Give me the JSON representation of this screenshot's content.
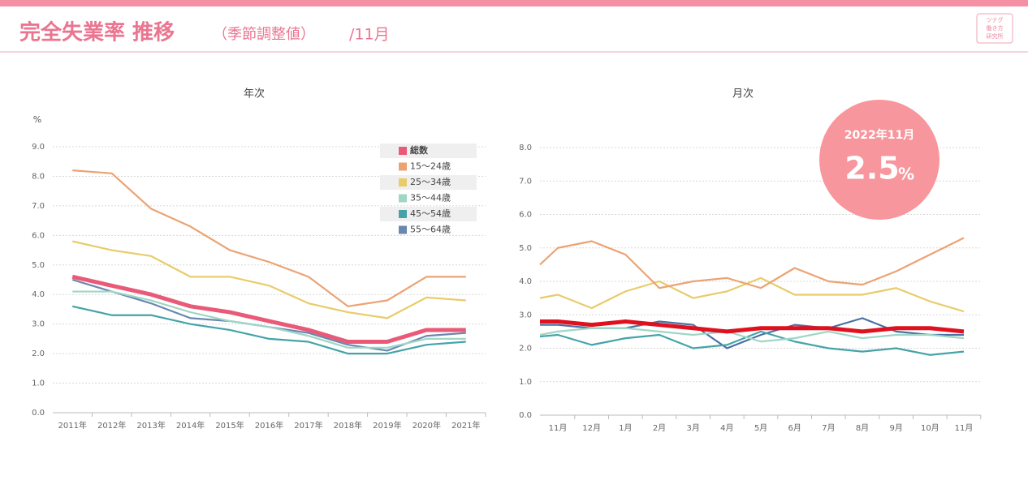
{
  "header": {
    "title": "完全失業率 推移",
    "subtitle": "（季節調整値）",
    "period": "/11月",
    "logo": [
      "ツナグ",
      "働き方",
      "研究所"
    ]
  },
  "badge": {
    "date": "2022年11月",
    "value": "2.5",
    "unit": "%"
  },
  "chart_data": [
    {
      "type": "line",
      "title": "年次",
      "y_label": "%",
      "categories": [
        "2011年",
        "2012年",
        "2013年",
        "2014年",
        "2015年",
        "2016年",
        "2017年",
        "2018年",
        "2019年",
        "2020年",
        "2021年"
      ],
      "ylim": [
        0,
        9
      ],
      "yticks": [
        {
          "value": 0,
          "label": "0.0"
        },
        {
          "value": 1,
          "label": "1.0"
        },
        {
          "value": 2,
          "label": "2.0"
        },
        {
          "value": 3,
          "label": "3.0"
        },
        {
          "value": 4,
          "label": "4.0"
        },
        {
          "value": 5,
          "label": "5.0"
        },
        {
          "value": 6,
          "label": "6.0"
        },
        {
          "value": 7,
          "label": "7.0"
        },
        {
          "value": 8,
          "label": "8.0"
        },
        {
          "value": 9,
          "label": "9.0"
        }
      ],
      "grid": true,
      "legend": "upper right",
      "series": [
        {
          "name": "総数",
          "color": "#e85a78",
          "values": [
            4.6,
            4.3,
            4.0,
            3.6,
            3.4,
            3.1,
            2.8,
            2.4,
            2.4,
            2.8,
            2.8
          ]
        },
        {
          "name": "15～24歳",
          "color": "#eba373",
          "values": [
            8.2,
            8.1,
            6.9,
            6.3,
            5.5,
            5.1,
            4.6,
            3.6,
            3.8,
            4.6,
            4.6
          ]
        },
        {
          "name": "25～34歳",
          "color": "#e8cc6a",
          "values": [
            5.8,
            5.5,
            5.3,
            4.6,
            4.6,
            4.3,
            3.7,
            3.4,
            3.2,
            3.9,
            3.8
          ]
        },
        {
          "name": "35～44歳",
          "color": "#9fd6c6",
          "values": [
            4.1,
            4.1,
            3.8,
            3.4,
            3.1,
            2.9,
            2.6,
            2.2,
            2.2,
            2.5,
            2.5
          ]
        },
        {
          "name": "45～54歳",
          "color": "#45a3a8",
          "values": [
            3.6,
            3.3,
            3.3,
            3.0,
            2.8,
            2.5,
            2.4,
            2.0,
            2.0,
            2.3,
            2.4
          ]
        },
        {
          "name": "55～64歳",
          "color": "#6a87ae",
          "values": [
            4.5,
            4.1,
            3.7,
            3.2,
            3.1,
            2.9,
            2.7,
            2.3,
            2.1,
            2.6,
            2.7
          ]
        }
      ]
    },
    {
      "type": "line",
      "title": "月次",
      "categories": [
        null,
        "11月",
        "12月",
        "1月",
        "2月",
        "3月",
        "4月",
        "5月",
        "6月",
        "7月",
        "8月",
        "9月",
        "10月",
        "11月"
      ],
      "ylim": [
        0,
        8
      ],
      "yticks": [
        {
          "value": 0,
          "label": "0.0"
        },
        {
          "value": 1,
          "label": "1.0"
        },
        {
          "value": 2,
          "label": "2.0"
        },
        {
          "value": 3,
          "label": "3.0"
        },
        {
          "value": 4,
          "label": "4.0"
        },
        {
          "value": 5,
          "label": "5.0"
        },
        {
          "value": 6,
          "label": "6.0"
        },
        {
          "value": 7,
          "label": "7.0"
        },
        {
          "value": 8,
          "label": "8.0"
        }
      ],
      "grid": true,
      "series": [
        {
          "color": "#e0101e",
          "values": [
            2.8,
            2.8,
            2.7,
            2.8,
            2.7,
            2.6,
            2.5,
            2.6,
            2.6,
            2.6,
            2.5,
            2.6,
            2.6,
            2.5
          ]
        },
        {
          "color": "#eba373",
          "values": [
            4.5,
            5.0,
            5.2,
            4.8,
            3.8,
            4.0,
            4.1,
            3.8,
            4.4,
            4.0,
            3.9,
            4.3,
            4.8,
            5.3
          ]
        },
        {
          "color": "#e8cc6a",
          "values": [
            3.5,
            3.6,
            3.2,
            3.7,
            4.0,
            3.5,
            3.7,
            4.1,
            3.6,
            3.6,
            3.6,
            3.8,
            3.4,
            3.1
          ]
        },
        {
          "color": "#9fd6c6",
          "values": [
            2.4,
            2.5,
            2.6,
            2.6,
            2.5,
            2.4,
            2.5,
            2.2,
            2.3,
            2.5,
            2.3,
            2.4,
            2.4,
            2.3
          ]
        },
        {
          "color": "#45a3a8",
          "values": [
            2.35,
            2.4,
            2.1,
            2.3,
            2.4,
            2.0,
            2.1,
            2.5,
            2.2,
            2.0,
            1.9,
            2.0,
            1.8,
            1.9
          ]
        },
        {
          "color": "#4a6fa5",
          "values": [
            2.7,
            2.7,
            2.6,
            2.6,
            2.8,
            2.7,
            2.0,
            2.4,
            2.7,
            2.6,
            2.9,
            2.5,
            2.4,
            2.4
          ]
        }
      ]
    }
  ]
}
